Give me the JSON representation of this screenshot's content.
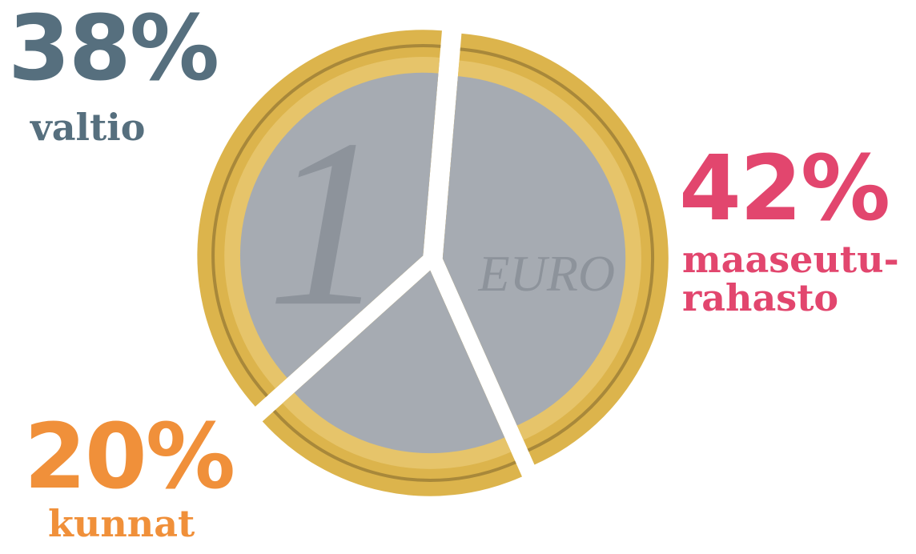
{
  "chart_data": {
    "type": "pie",
    "categories": [
      "valtio",
      "maaseutu-\nrahasto",
      "kunnat"
    ],
    "values": [
      38,
      42,
      20
    ],
    "value_labels": [
      "38%",
      "42%",
      "20%"
    ],
    "colors": [
      "#566f7e",
      "#e2466e",
      "#f0903a"
    ],
    "annotations": [
      "1",
      "EURO"
    ]
  }
}
